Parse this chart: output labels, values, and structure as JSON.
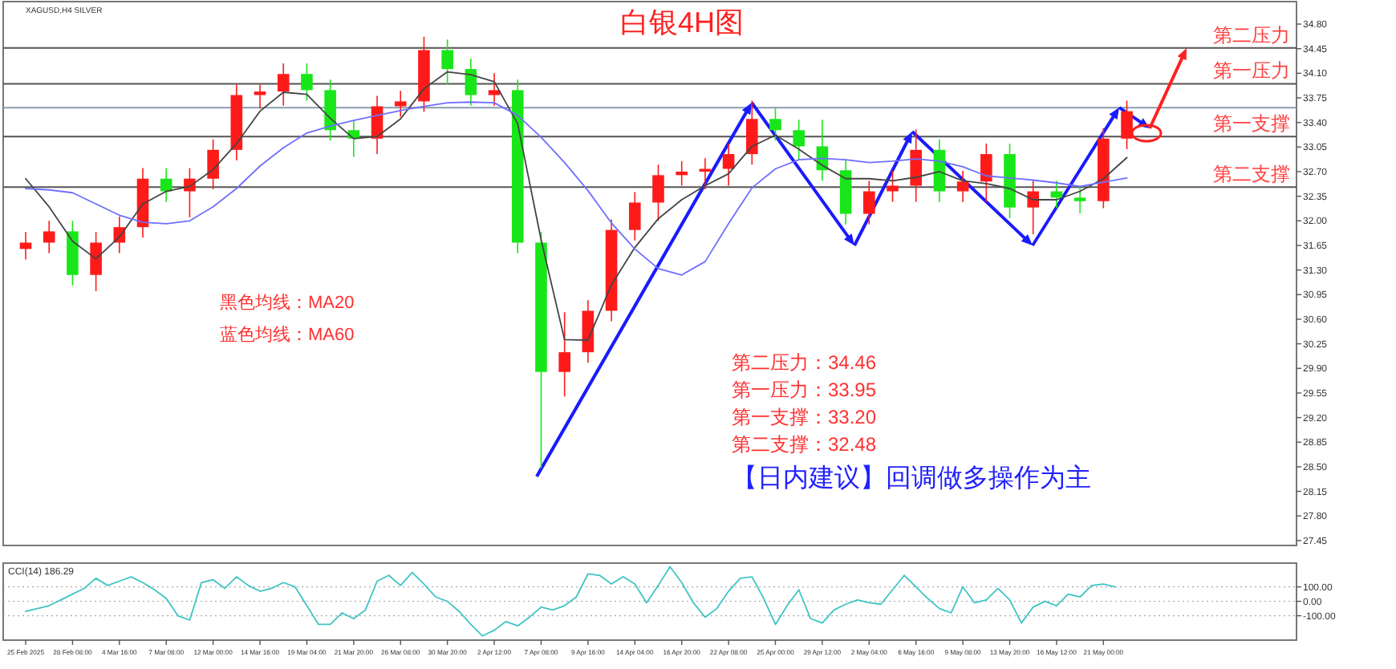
{
  "chart_data": [
    {
      "type": "candlestick",
      "title": "白银4H图",
      "annotations": [
        "XAGUSD,H4 SILVER",
        "黑色均线：MA20",
        "蓝色均线：MA60",
        "第二压力：34.46",
        "第一压力：33.95",
        "第一支撑：33.20",
        "第二支撑：32.48",
        "【日内建议】回调做多操作为主"
      ],
      "categories": [
        null,
        null,
        null,
        null,
        null,
        null,
        null,
        null,
        null,
        null,
        null,
        null,
        null,
        null,
        null,
        null,
        null,
        null,
        null,
        null,
        null,
        null,
        null,
        null,
        null,
        null,
        null,
        null,
        null,
        null,
        null,
        null,
        null,
        null,
        null,
        null,
        null,
        null,
        null,
        null,
        null,
        null,
        null,
        null,
        null,
        null,
        null,
        null,
        null,
        null
      ],
      "ohlc": [
        [
          31.6,
          31.84,
          31.45,
          31.69
        ],
        [
          31.69,
          32.0,
          31.54,
          31.85
        ],
        [
          31.85,
          32.0,
          31.08,
          31.23
        ],
        [
          31.23,
          31.84,
          31.0,
          31.69
        ],
        [
          31.69,
          32.06,
          31.54,
          31.91
        ],
        [
          31.91,
          32.75,
          31.76,
          32.6
        ],
        [
          32.6,
          32.75,
          32.27,
          32.42
        ],
        [
          32.42,
          32.75,
          32.05,
          32.6
        ],
        [
          32.6,
          33.16,
          32.45,
          33.01
        ],
        [
          33.01,
          33.94,
          32.86,
          33.79
        ],
        [
          33.79,
          33.94,
          33.6,
          33.84
        ],
        [
          33.84,
          34.24,
          33.64,
          34.09
        ],
        [
          34.09,
          34.24,
          33.71,
          33.86
        ],
        [
          33.86,
          34.01,
          33.14,
          33.29
        ],
        [
          33.29,
          33.44,
          32.91,
          33.17
        ],
        [
          33.17,
          33.78,
          32.95,
          33.63
        ],
        [
          33.63,
          33.85,
          33.48,
          33.7
        ],
        [
          33.7,
          34.62,
          33.55,
          34.43
        ],
        [
          34.43,
          34.58,
          33.94,
          34.16
        ],
        [
          34.16,
          34.31,
          33.64,
          33.79
        ],
        [
          33.79,
          34.1,
          33.64,
          33.86
        ],
        [
          33.86,
          34.01,
          31.54,
          31.69
        ],
        [
          31.69,
          31.84,
          28.48,
          29.85
        ],
        [
          29.85,
          30.7,
          29.5,
          30.13
        ],
        [
          30.13,
          30.87,
          29.98,
          30.72
        ],
        [
          30.72,
          32.02,
          30.57,
          31.87
        ],
        [
          31.87,
          32.41,
          31.72,
          32.26
        ],
        [
          32.26,
          32.8,
          32.0,
          32.65
        ],
        [
          32.65,
          32.85,
          32.5,
          32.7
        ],
        [
          32.7,
          32.89,
          32.45,
          32.74
        ],
        [
          32.74,
          33.1,
          32.5,
          32.95
        ],
        [
          32.95,
          33.71,
          32.8,
          33.45
        ],
        [
          33.45,
          33.6,
          33.14,
          33.29
        ],
        [
          33.29,
          33.44,
          32.86,
          33.06
        ],
        [
          33.06,
          33.44,
          32.57,
          32.72
        ],
        [
          32.72,
          32.87,
          31.95,
          32.1
        ],
        [
          32.1,
          32.57,
          31.95,
          32.42
        ],
        [
          32.42,
          32.71,
          32.27,
          32.5
        ],
        [
          32.5,
          33.3,
          32.27,
          33.01
        ],
        [
          33.01,
          33.16,
          32.27,
          32.42
        ],
        [
          32.42,
          32.71,
          32.27,
          32.56
        ],
        [
          32.56,
          33.1,
          32.27,
          32.95
        ],
        [
          32.95,
          33.1,
          32.04,
          32.19
        ],
        [
          32.19,
          32.57,
          31.81,
          32.42
        ],
        [
          32.42,
          32.57,
          32.18,
          32.33
        ],
        [
          32.33,
          32.48,
          32.11,
          32.28
        ],
        [
          32.28,
          33.32,
          32.18,
          33.17
        ],
        [
          33.17,
          33.71,
          33.02,
          33.56
        ],
        null,
        null
      ],
      "series": [
        {
          "type": "line",
          "color": "#444444",
          "values": [
            32.6,
            32.2,
            31.71,
            31.46,
            31.77,
            32.24,
            32.42,
            32.49,
            32.73,
            33.1,
            33.56,
            33.83,
            33.8,
            33.46,
            33.17,
            33.2,
            33.45,
            33.88,
            34.12,
            34.08,
            33.98,
            33.38,
            31.73,
            30.31,
            30.3,
            31.09,
            31.62,
            32.03,
            32.3,
            32.5,
            32.67,
            33.06,
            33.22,
            33.02,
            32.79,
            32.6,
            32.6,
            32.57,
            32.62,
            32.7,
            32.57,
            32.53,
            32.46,
            32.3,
            32.3,
            32.42,
            32.6,
            32.9,
            null,
            null
          ]
        },
        {
          "type": "line",
          "color": "#6f6fff",
          "values": [
            32.46,
            32.44,
            32.4,
            32.24,
            32.08,
            31.98,
            31.96,
            32.0,
            32.2,
            32.46,
            32.78,
            33.04,
            33.25,
            33.35,
            33.43,
            33.5,
            33.57,
            33.63,
            33.68,
            33.69,
            33.68,
            33.5,
            33.19,
            32.83,
            32.43,
            31.97,
            31.6,
            31.32,
            31.23,
            31.42,
            31.96,
            32.47,
            32.74,
            32.87,
            32.89,
            32.87,
            32.83,
            32.85,
            32.88,
            32.85,
            32.77,
            32.64,
            32.61,
            32.58,
            32.54,
            32.49,
            32.55,
            32.61,
            null,
            null
          ]
        }
      ],
      "ref_lines": [
        {
          "axis": "y",
          "value": 34.46,
          "label": "第二压力",
          "color": "#555555"
        },
        {
          "axis": "y",
          "value": 33.95,
          "label": "第一压力",
          "color": "#555555"
        },
        {
          "axis": "y",
          "value": 33.61,
          "color": "#8a9bb0"
        },
        {
          "axis": "y",
          "value": 33.2,
          "label": "第一支撑",
          "color": "#555555"
        },
        {
          "axis": "y",
          "value": 32.48,
          "label": "第二支撑",
          "color": "#555555"
        }
      ],
      "ylim": [
        27.38,
        35.12
      ],
      "yticks": [
        {
          "value": 34.8,
          "label": "34.80"
        },
        {
          "value": 34.45,
          "label": "34.45"
        },
        {
          "value": 34.1,
          "label": "34.10"
        },
        {
          "value": 33.75,
          "label": "33.75"
        },
        {
          "value": 33.4,
          "label": "33.40"
        },
        {
          "value": 33.05,
          "label": "33.05"
        },
        {
          "value": 32.7,
          "label": "32.70"
        },
        {
          "value": 32.35,
          "label": "32.35"
        },
        {
          "value": 32.0,
          "label": "32.00"
        },
        {
          "value": 31.65,
          "label": "31.65"
        },
        {
          "value": 31.3,
          "label": "31.30"
        },
        {
          "value": 30.95,
          "label": "30.95"
        },
        {
          "value": 30.6,
          "label": "30.60"
        },
        {
          "value": 30.25,
          "label": "30.25"
        },
        {
          "value": 29.9,
          "label": "29.90"
        },
        {
          "value": 29.55,
          "label": "29.55"
        },
        {
          "value": 29.2,
          "label": "29.20"
        },
        {
          "value": 28.85,
          "label": "28.85"
        },
        {
          "value": 28.5,
          "label": "28.50"
        },
        {
          "value": 28.15,
          "label": "28.15"
        },
        {
          "value": 27.8,
          "label": "27.80"
        },
        {
          "value": 27.45,
          "label": "27.45"
        }
      ]
    },
    {
      "type": "line",
      "title": "CCI(14) 186.29",
      "color": "#40c4c4",
      "categories": [
        "25 Feb 2025",
        null,
        null,
        null,
        "28 Feb 08:00",
        null,
        null,
        null,
        "4 Mar 16:00",
        null,
        null,
        null,
        "7 Mar 08:00",
        null,
        null,
        null,
        "12 Mar 00:00",
        null,
        null,
        null,
        "14 Mar 16:00",
        null,
        null,
        null,
        "19 Mar 04:00",
        null,
        null,
        null,
        "21 Mar 20:00",
        null,
        null,
        null,
        "26 Mar 08:00",
        null,
        null,
        null,
        "30 Mar 20:00",
        null,
        null,
        null,
        "2 Apr 12:00",
        null,
        null,
        null,
        "7 Apr 08:00",
        null,
        null,
        null,
        "9 Apr 16:00",
        null,
        null,
        null,
        "14 Apr 04:00",
        null,
        null,
        null,
        "16 Apr 20:00",
        null,
        null,
        null,
        "22 Apr 08:00",
        null,
        null,
        null,
        "25 Apr 00:00",
        null,
        null,
        null,
        "29 Apr 12:00",
        null,
        null,
        null,
        "2 May 04:00",
        null,
        null,
        null,
        "6 May 16:00",
        null,
        null,
        null,
        "9 May 08:00",
        null,
        null,
        null,
        "13 May 20:00",
        null,
        null,
        null,
        "16 May 12:00",
        null,
        null,
        null,
        "21 May 00:00",
        null
      ],
      "values": [
        -70,
        -50,
        -30,
        10,
        50,
        90,
        160,
        110,
        140,
        170,
        130,
        80,
        20,
        -100,
        -130,
        130,
        150,
        90,
        170,
        110,
        70,
        90,
        130,
        100,
        -30,
        -160,
        -160,
        -80,
        -120,
        -60,
        140,
        180,
        110,
        200,
        120,
        30,
        0,
        -70,
        -160,
        -240,
        -200,
        -140,
        -170,
        -110,
        -40,
        -60,
        -30,
        30,
        190,
        180,
        120,
        170,
        120,
        -10,
        110,
        240,
        130,
        -10,
        -110,
        -50,
        70,
        160,
        170,
        20,
        -160,
        -30,
        80,
        -120,
        -150,
        -60,
        -20,
        10,
        -10,
        -20,
        80,
        180,
        100,
        20,
        -50,
        -80,
        100,
        -10,
        10,
        90,
        10,
        -150,
        -40,
        0,
        -30,
        50,
        30,
        110,
        120,
        100
      ],
      "ylim": [
        -269,
        265
      ],
      "grid": "y",
      "yticks": [
        {
          "value": 100,
          "label": "100.00"
        },
        {
          "value": 0,
          "label": "0.00"
        },
        {
          "value": -100,
          "label": "-100.00"
        }
      ]
    }
  ]
}
